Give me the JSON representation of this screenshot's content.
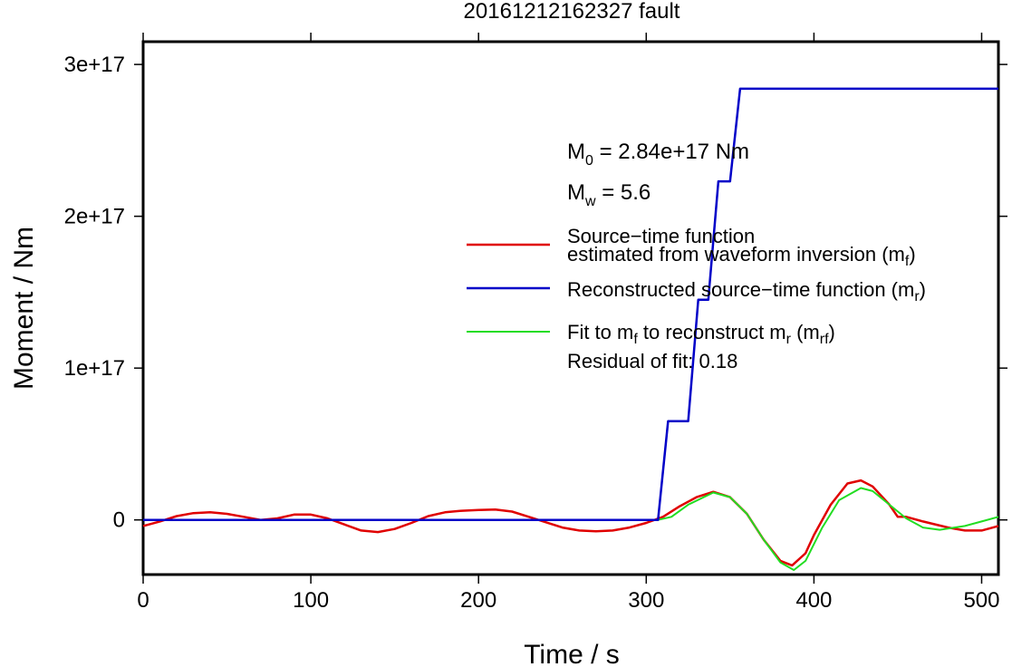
{
  "chart_data": {
    "type": "line",
    "title": "20161212162327 fault",
    "xlabel": "Time / s",
    "ylabel": "Moment / Nm",
    "xlim": [
      0,
      510
    ],
    "ylim": [
      -3.6e+16,
      3.15e+17
    ],
    "x_ticks": [
      {
        "value": 0,
        "label": "0"
      },
      {
        "value": 100,
        "label": "100"
      },
      {
        "value": 200,
        "label": "200"
      },
      {
        "value": 300,
        "label": "300"
      },
      {
        "value": 400,
        "label": "400"
      },
      {
        "value": 500,
        "label": "500"
      }
    ],
    "y_ticks": [
      {
        "value": 0,
        "label": "0"
      },
      {
        "value": 1e+17,
        "label": "1e+17"
      },
      {
        "value": 2e+17,
        "label": "2e+17"
      },
      {
        "value": 3e+17,
        "label": "3e+17"
      }
    ],
    "grid": false,
    "legend_position": "right",
    "annotations": {
      "m0_base": "M",
      "m0_sub": "0",
      "m0_value": " = 2.84e+17 Nm",
      "mw_base": "M",
      "mw_sub": "w",
      "mw_value": " = 5.6",
      "residual": "Residual of fit: 0.18"
    },
    "legend": [
      {
        "color": "#e00000",
        "line1": "Source−time function",
        "line2_main": "estimated from waveform inversion (m",
        "line2_sub": "f",
        "line2_end": ")"
      },
      {
        "color": "#0000c8",
        "line1_main": "Reconstructed source−time function (m",
        "line1_sub": "r",
        "line1_end": ")"
      },
      {
        "color": "#22dd22",
        "p1": "Fit to m",
        "s1": "f",
        "p2": " to reconstruct m",
        "s2": "r",
        "p3": " (m",
        "s3": "rf",
        "p4": ")"
      }
    ],
    "series": [
      {
        "name": "Source−time function estimated from waveform inversion (mf)",
        "color": "#e00000",
        "x": [
          0,
          10,
          20,
          30,
          40,
          50,
          60,
          70,
          80,
          90,
          100,
          110,
          120,
          130,
          140,
          150,
          160,
          170,
          180,
          190,
          200,
          210,
          220,
          230,
          240,
          250,
          260,
          270,
          280,
          290,
          300,
          310,
          320,
          330,
          340,
          350,
          360,
          370,
          380,
          387,
          395,
          400,
          410,
          420,
          428,
          435,
          445,
          450,
          455,
          465,
          480,
          490,
          500,
          510
        ],
        "y": [
          -4000000000000000.0,
          -1000000000000000.0,
          2500000000000000.0,
          4500000000000000.0,
          5000000000000000.0,
          4000000000000000.0,
          2000000000000000.0,
          0,
          1000000000000000.0,
          3500000000000000.0,
          3500000000000000.0,
          1000000000000000.0,
          -3000000000000000.0,
          -7000000000000000.0,
          -8000000000000000.0,
          -6000000000000000.0,
          -2000000000000000.0,
          2500000000000000.0,
          5000000000000000.0,
          6000000000000000.0,
          6500000000000000.0,
          6800000000000000.0,
          5500000000000000.0,
          2000000000000000.0,
          -1500000000000000.0,
          -5000000000000000.0,
          -7000000000000000.0,
          -7500000000000000.0,
          -7000000000000000.0,
          -5000000000000000.0,
          -2000000000000000.0,
          2000000000000000.0,
          9000000000000000.0,
          1.5e+16,
          1.85e+16,
          1.5e+16,
          4000000000000000.0,
          -1.3e+16,
          -2.7e+16,
          -3e+16,
          -2.2e+16,
          -1e+16,
          1e+16,
          2.4e+16,
          2.6e+16,
          2.2e+16,
          1e+16,
          2000000000000000.0,
          2000000000000000.0,
          -1000000000000000.0,
          -5000000000000000.0,
          -7000000000000000.0,
          -7000000000000000.0,
          -4000000000000000.0
        ]
      },
      {
        "name": "Reconstructed source−time function (mr)",
        "color": "#0000c8",
        "x": [
          0,
          307,
          313,
          325,
          331,
          337,
          343,
          350,
          356,
          510
        ],
        "y": [
          0,
          0,
          6.5e+16,
          6.5e+16,
          1.45e+17,
          1.45e+17,
          2.23e+17,
          2.23e+17,
          2.84e+17,
          2.84e+17
        ]
      },
      {
        "name": "Fit to mf to reconstruct mr (mrf)",
        "color": "#22dd22",
        "x": [
          307,
          315,
          325,
          340,
          350,
          360,
          370,
          380,
          388,
          395,
          405,
          415,
          428,
          435,
          445,
          455,
          465,
          475,
          490,
          500,
          510
        ],
        "y": [
          0,
          2000000000000000.0,
          1e+16,
          1.8e+16,
          1.5e+16,
          4000000000000000.0,
          -1.3e+16,
          -2.8e+16,
          -3.3e+16,
          -2.7e+16,
          -5000000000000000.0,
          1.3e+16,
          2.1e+16,
          1.9e+16,
          1e+16,
          1000000000000000.0,
          -5000000000000000.0,
          -6500000000000000.0,
          -4000000000000000.0,
          -1000000000000000.0,
          2000000000000000.0
        ]
      }
    ]
  }
}
